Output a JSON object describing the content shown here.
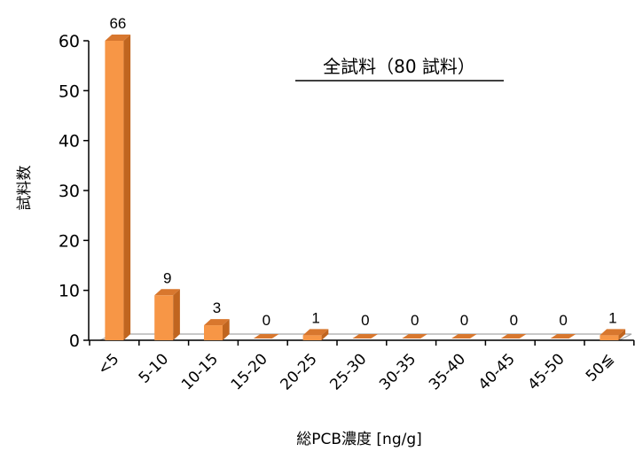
{
  "chart_data": {
    "type": "bar",
    "title": "",
    "annotation": "全試料（80 試料）",
    "xlabel": "総PCB濃度 [ng/g]",
    "ylabel": "試料数",
    "ylim": [
      0,
      60
    ],
    "yticks": [
      0,
      10,
      20,
      30,
      40,
      50,
      60
    ],
    "categories": [
      "<5",
      "5-10",
      "10-15",
      "15-20",
      "20-25",
      "25-30",
      "30-35",
      "35-40",
      "40-45",
      "45-50",
      "50≦"
    ],
    "values": [
      66,
      9,
      3,
      0,
      1,
      0,
      0,
      0,
      0,
      0,
      1
    ],
    "data_labels": [
      "66",
      "9",
      "3",
      "0",
      "1",
      "0",
      "0",
      "0",
      "0",
      "0",
      "1"
    ],
    "grid": false,
    "legend": "none",
    "colors": {
      "bar_front": "#F79646",
      "bar_top": "#D8772E",
      "bar_side": "#C0651F",
      "floor": "#FFFFFF",
      "floor_stroke": "#A6A6A6",
      "axis": "#000000"
    }
  }
}
